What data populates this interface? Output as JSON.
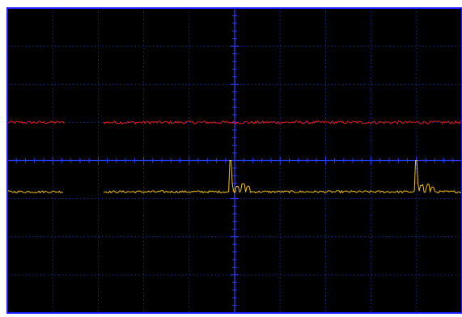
{
  "scope": {
    "background_color": "#000000",
    "frame_color": "#ffffff",
    "border_color": "#1c1cff",
    "grid_color": "#1a2a9a",
    "axis_color": "#2a3cff",
    "grid": {
      "horizontal_divisions": 10,
      "vertical_divisions": 8,
      "minor_ticks_per_division": 5,
      "grid_style": "dotted"
    }
  },
  "traces": [
    {
      "color": "#e0191c",
      "baseline_div": 1.0,
      "noise_div": 0.04,
      "segments": [
        [
          0.0,
          1.28
        ],
        [
          2.12,
          10.0
        ]
      ],
      "spikes": []
    },
    {
      "color": "#f2c200",
      "baseline_div": -0.82,
      "noise_div": 0.03,
      "segments": [
        [
          0.0,
          1.25
        ],
        [
          2.12,
          10.0
        ]
      ],
      "spikes": [
        {
          "at_div": 4.91,
          "height_div": 0.82,
          "ringing": [
            [
              5.05,
              0.2
            ],
            [
              5.18,
              0.22
            ],
            [
              5.3,
              0.16
            ]
          ]
        },
        {
          "at_div": 8.99,
          "height_div": 0.82,
          "ringing": [
            [
              9.12,
              0.2
            ],
            [
              9.24,
              0.22
            ],
            [
              9.35,
              0.15
            ]
          ]
        }
      ]
    }
  ]
}
